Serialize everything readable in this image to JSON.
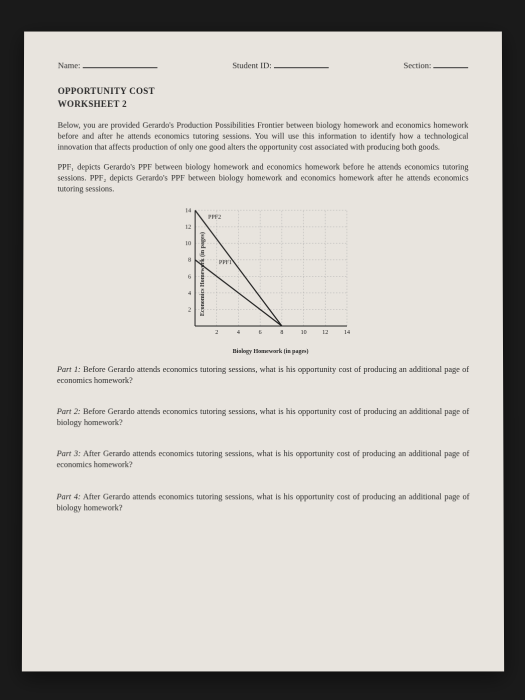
{
  "header": {
    "name_label": "Name:",
    "id_label": "Student ID:",
    "section_label": "Section:"
  },
  "title": {
    "line1": "OPPORTUNITY COST",
    "line2": "WORKSHEET 2"
  },
  "intro": "Below, you are provided Gerardo's Production Possibilities Frontier between biology homework and economics homework before and after he attends economics tutoring sessions. You will use this information to identify how a technological innovation that affects production of only one good alters the opportunity cost associated with producing both goods.",
  "ppf_desc": "PPF₁ depicts Gerardo's PPF between biology homework and economics homework before he attends economics tutoring sessions. PPF₂ depicts Gerardo's PPF between biology homework and economics homework after he attends economics tutoring sessions.",
  "chart": {
    "type": "line",
    "ylabel": "Economics Homework (in pages)",
    "xlabel": "Biology Homework (in pages)",
    "xlim": [
      0,
      14
    ],
    "ylim": [
      0,
      14
    ],
    "xticks": [
      2,
      4,
      6,
      8,
      10,
      12,
      14
    ],
    "yticks": [
      2,
      4,
      6,
      8,
      10,
      12,
      14
    ],
    "series": [
      {
        "name": "PPF1",
        "points": [
          [
            0,
            8
          ],
          [
            8,
            0
          ]
        ],
        "label_pos": [
          2.2,
          7.5
        ]
      },
      {
        "name": "PPF2",
        "points": [
          [
            0,
            14
          ],
          [
            8,
            0
          ]
        ],
        "label_pos": [
          1.2,
          13
        ]
      }
    ],
    "axis_color": "#222222",
    "grid_color": "#aaaaaa",
    "line_color": "#222222",
    "background": "#e8e4de",
    "tick_fontsize": 6,
    "label_fontsize": 6
  },
  "parts": {
    "p1_label": "Part 1:",
    "p1": " Before Gerardo attends economics tutoring sessions, what is his opportunity cost of producing an additional page of economics homework?",
    "p2_label": "Part 2:",
    "p2": " Before Gerardo attends economics tutoring sessions, what is his opportunity cost of producing an additional page of biology homework?",
    "p3_label": "Part 3:",
    "p3": " After Gerardo attends economics tutoring sessions, what is his opportunity cost of producing an additional page of economics homework?",
    "p4_label": "Part 4:",
    "p4": " After Gerardo attends economics tutoring sessions, what is his opportunity cost of producing an additional page of biology homework?"
  }
}
